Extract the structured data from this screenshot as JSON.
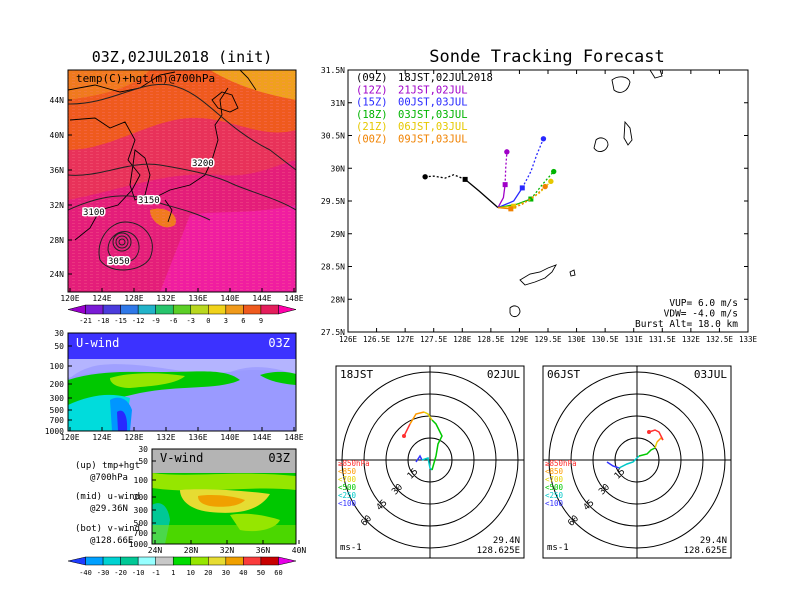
{
  "left": {
    "title": "03Z,02JUL2018 (init)",
    "map_label": "temp(C)+hgt(m)@700hPa",
    "lat_ticks": [
      "44N",
      "40N",
      "36N",
      "32N",
      "28N",
      "24N"
    ],
    "lon_ticks": [
      "120E",
      "124E",
      "128E",
      "132E",
      "136E",
      "140E",
      "144E",
      "148E"
    ],
    "contour_labels": [
      "3200",
      "3150",
      "3100",
      "3050"
    ],
    "temp_colorbar": {
      "labels": [
        "-21",
        "-18",
        "-15",
        "-12",
        "-9",
        "-6",
        "-3",
        "0",
        "3",
        "6",
        "9"
      ],
      "colors": [
        "#9900cc",
        "#7a1bd6",
        "#4b3cdc",
        "#2f78e8",
        "#22b3c9",
        "#27c46c",
        "#5ccf27",
        "#b9d81f",
        "#f0d21b",
        "#f09a1b",
        "#ef5a1e",
        "#e41e5c",
        "#ff00aa"
      ]
    },
    "u_panel": {
      "label": "U-wind",
      "time": "03Z",
      "p_ticks": [
        "30",
        "50",
        "100",
        "200",
        "300",
        "500",
        "700",
        "1000"
      ],
      "lon_ticks": [
        "120E",
        "124E",
        "128E",
        "132E",
        "136E",
        "140E",
        "144E",
        "148E"
      ]
    },
    "v_panel": {
      "label": "V-wind",
      "time": "03Z",
      "p_ticks": [
        "30",
        "50",
        "100",
        "200",
        "300",
        "500",
        "700",
        "1000"
      ],
      "lat_ticks": [
        "24N",
        "28N",
        "32N",
        "36N",
        "40N"
      ]
    },
    "notes": [
      {
        "a": "(up) tmp+hgt",
        "b": "@700hPa"
      },
      {
        "a": "(mid) u-wind",
        "b": "@29.36N"
      },
      {
        "a": "(bot) v-wind",
        "b": "@128.66E"
      }
    ],
    "wind_colorbar": {
      "labels": [
        "-40",
        "-30",
        "-20",
        "-10",
        "-1",
        "1",
        "10",
        "20",
        "30",
        "40",
        "50",
        "60"
      ],
      "colors": [
        "#1e3cff",
        "#00a0ff",
        "#00d2d2",
        "#00c896",
        "#96ffff",
        "#c8c8c8",
        "#00dc00",
        "#96e600",
        "#e6dc32",
        "#f0a000",
        "#fa3c3c",
        "#c80000",
        "#e600e6"
      ]
    }
  },
  "track": {
    "title": "Sonde Tracking Forecast",
    "lat_ticks": [
      "31.5N",
      "31N",
      "30.5N",
      "30N",
      "29.5N",
      "29N",
      "28.5N",
      "28N",
      "27.5N"
    ],
    "lon_ticks": [
      "126E",
      "126.5E",
      "127E",
      "127.5E",
      "128E",
      "128.5E",
      "129E",
      "129.5E",
      "130E",
      "130.5E",
      "131E",
      "131.5E",
      "132E",
      "132.5E",
      "133E"
    ],
    "legend": [
      {
        "code": "(09Z)",
        "text": "18JST,02JUL2018",
        "color": "#000000"
      },
      {
        "code": "(12Z)",
        "text": "21JST,02JUL",
        "color": "#a000c8"
      },
      {
        "code": "(15Z)",
        "text": "00JST,03JUL",
        "color": "#2828ff"
      },
      {
        "code": "(18Z)",
        "text": "03JST,03JUL",
        "color": "#00b400"
      },
      {
        "code": "(21Z)",
        "text": "06JST,03JUL",
        "color": "#e6c800"
      },
      {
        "code": "(00Z)",
        "text": "09JST,03JUL",
        "color": "#f08200"
      }
    ],
    "params": [
      "VUP= 6.0 m/s",
      "VDW= -4.0 m/s",
      "Burst Alt= 18.0 km"
    ],
    "launch": {
      "lon": 128.625,
      "lat": 29.4
    },
    "tracks": [
      {
        "name": "09Z",
        "color": "#000000",
        "pts": [
          [
            128.625,
            29.4
          ],
          [
            128.3,
            29.65
          ],
          [
            128.05,
            29.83
          ],
          [
            127.85,
            29.9
          ],
          [
            127.7,
            29.85
          ],
          [
            127.5,
            29.88
          ],
          [
            127.35,
            29.87
          ]
        ],
        "burst": [
          128.05,
          29.83
        ],
        "end": [
          127.35,
          29.87
        ]
      },
      {
        "name": "12Z",
        "color": "#a000c8",
        "pts": [
          [
            128.625,
            29.4
          ],
          [
            128.72,
            29.55
          ],
          [
            128.75,
            29.75
          ],
          [
            128.76,
            30.0
          ],
          [
            128.78,
            30.25
          ]
        ],
        "burst": [
          128.75,
          29.75
        ],
        "end": [
          128.78,
          30.25
        ]
      },
      {
        "name": "15Z",
        "color": "#2828ff",
        "pts": [
          [
            128.625,
            29.4
          ],
          [
            128.9,
            29.5
          ],
          [
            129.05,
            29.7
          ],
          [
            129.2,
            29.95
          ],
          [
            129.3,
            30.2
          ],
          [
            129.42,
            30.45
          ]
        ],
        "burst": [
          129.05,
          29.7
        ],
        "end": [
          129.42,
          30.45
        ]
      },
      {
        "name": "18Z",
        "color": "#00b400",
        "pts": [
          [
            128.625,
            29.4
          ],
          [
            128.95,
            29.45
          ],
          [
            129.2,
            29.53
          ],
          [
            129.4,
            29.75
          ],
          [
            129.6,
            29.95
          ]
        ],
        "burst": [
          129.2,
          29.53
        ],
        "end": [
          129.6,
          29.95
        ]
      },
      {
        "name": "21Z",
        "color": "#e6c800",
        "pts": [
          [
            128.625,
            29.4
          ],
          [
            128.9,
            29.42
          ],
          [
            129.15,
            29.5
          ],
          [
            129.35,
            29.62
          ],
          [
            129.55,
            29.8
          ]
        ],
        "burst": [
          128.9,
          29.42
        ],
        "end": [
          129.55,
          29.8
        ]
      },
      {
        "name": "00Z",
        "color": "#f08200",
        "pts": [
          [
            128.625,
            29.4
          ],
          [
            128.85,
            29.38
          ],
          [
            129.05,
            29.45
          ],
          [
            129.3,
            29.6
          ],
          [
            129.45,
            29.72
          ]
        ],
        "burst": [
          128.85,
          29.38
        ],
        "end": [
          129.45,
          29.72
        ]
      }
    ]
  },
  "hodo_a": {
    "time": "18JST",
    "date": "02JUL",
    "lat": "29.4N",
    "lon": "128.625E",
    "unit": "ms-1",
    "rings": [
      "15",
      "30",
      "45",
      "60"
    ]
  },
  "hodo_b": {
    "time": "06JST",
    "date": "03JUL",
    "lat": "29.4N",
    "lon": "128.625E",
    "unit": "ms-1",
    "rings": [
      "15",
      "30",
      "45",
      "60"
    ]
  },
  "hodo_legend": [
    {
      "text": "≥850hPa",
      "color": "#ff3030"
    },
    {
      "text": "<850",
      "color": "#ff9a00"
    },
    {
      "text": "<700",
      "color": "#e6d200"
    },
    {
      "text": "<500",
      "color": "#00c800"
    },
    {
      "text": "<250",
      "color": "#00c8c8"
    },
    {
      "text": "<100",
      "color": "#3232ff"
    }
  ]
}
